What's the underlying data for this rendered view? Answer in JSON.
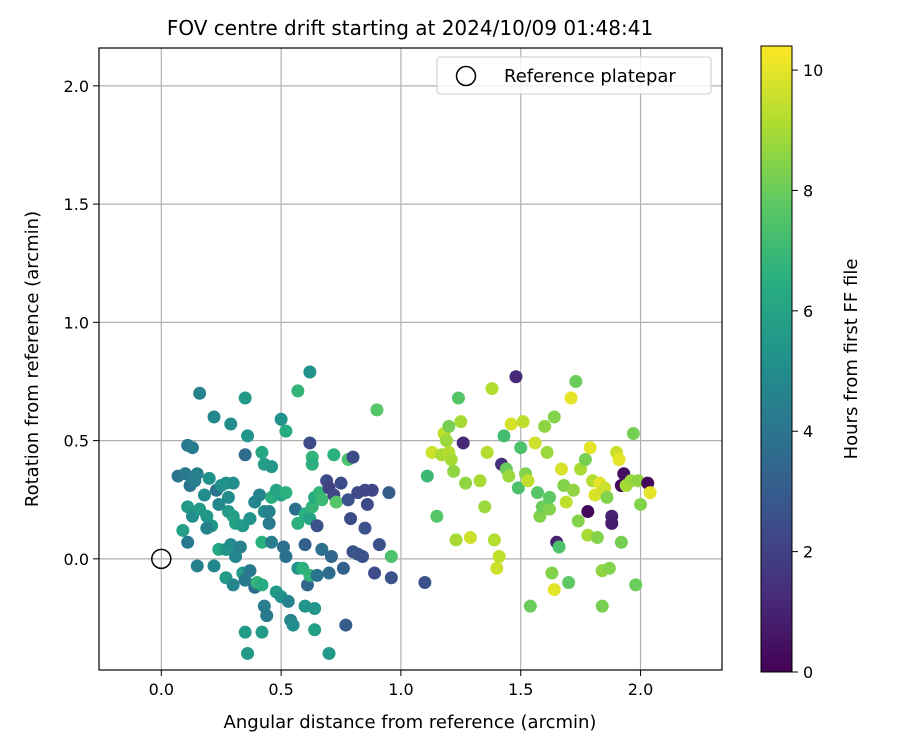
{
  "chart_data": {
    "type": "scatter",
    "title": "FOV centre drift starting at 2024/10/09 01:48:41",
    "xlabel": "Angular distance from reference (arcmin)",
    "ylabel": "Rotation from reference (arcmin)",
    "xlim": [
      -0.26,
      2.34
    ],
    "ylim": [
      -0.47,
      2.16
    ],
    "xticks": [
      0.0,
      0.5,
      1.0,
      1.5,
      2.0
    ],
    "xtick_labels": [
      "0.0",
      "0.5",
      "1.0",
      "1.5",
      "2.0"
    ],
    "yticks": [
      0.0,
      0.5,
      1.0,
      1.5,
      2.0
    ],
    "ytick_labels": [
      "0.0",
      "0.5",
      "1.0",
      "1.5",
      "2.0"
    ],
    "grid": true,
    "legend": {
      "position": "top-right",
      "label": "Reference platepar"
    },
    "reference_point": {
      "x": 0.0,
      "y": 0.0
    },
    "colorbar": {
      "label": "Hours from first FF file",
      "min": 0,
      "max": 10.4,
      "ticks": [
        0,
        2,
        4,
        6,
        8,
        10
      ],
      "tick_labels": [
        "0",
        "2",
        "4",
        "6",
        "8",
        "10"
      ],
      "colormap": "viridis"
    },
    "point_fields": [
      "x",
      "y",
      "hours"
    ],
    "points": [
      [
        0.11,
        0.48,
        4.2
      ],
      [
        0.13,
        0.47,
        4.3
      ],
      [
        0.16,
        0.7,
        4.6
      ],
      [
        0.22,
        0.6,
        4.8
      ],
      [
        0.29,
        0.57,
        5.0
      ],
      [
        0.35,
        0.68,
        5.6
      ],
      [
        0.36,
        0.52,
        5.4
      ],
      [
        0.35,
        0.44,
        3.6
      ],
      [
        0.42,
        0.45,
        6.2
      ],
      [
        0.43,
        0.4,
        5.8
      ],
      [
        0.46,
        0.39,
        5.5
      ],
      [
        0.5,
        0.59,
        5.2
      ],
      [
        0.52,
        0.54,
        6.4
      ],
      [
        0.57,
        0.71,
        6.8
      ],
      [
        0.62,
        0.79,
        5.2
      ],
      [
        0.62,
        0.49,
        2.4
      ],
      [
        0.63,
        0.43,
        6.8
      ],
      [
        0.63,
        0.4,
        6.6
      ],
      [
        0.72,
        0.44,
        6.6
      ],
      [
        0.78,
        0.42,
        7.4
      ],
      [
        0.8,
        0.43,
        2.4
      ],
      [
        0.9,
        0.63,
        7.6
      ],
      [
        0.07,
        0.35,
        4.0
      ],
      [
        0.1,
        0.36,
        4.2
      ],
      [
        0.12,
        0.31,
        4.0
      ],
      [
        0.14,
        0.33,
        4.4
      ],
      [
        0.15,
        0.36,
        4.5
      ],
      [
        0.18,
        0.27,
        5.0
      ],
      [
        0.2,
        0.34,
        5.2
      ],
      [
        0.23,
        0.29,
        4.0
      ],
      [
        0.25,
        0.31,
        5.1
      ],
      [
        0.27,
        0.32,
        5.3
      ],
      [
        0.28,
        0.26,
        5.0
      ],
      [
        0.3,
        0.32,
        5.0
      ],
      [
        0.11,
        0.22,
        5.6
      ],
      [
        0.13,
        0.18,
        5.0
      ],
      [
        0.16,
        0.21,
        5.6
      ],
      [
        0.19,
        0.18,
        5.5
      ],
      [
        0.21,
        0.14,
        5.4
      ],
      [
        0.24,
        0.23,
        4.8
      ],
      [
        0.28,
        0.2,
        5.6
      ],
      [
        0.3,
        0.18,
        5.8
      ],
      [
        0.31,
        0.15,
        5.9
      ],
      [
        0.34,
        0.14,
        5.6
      ],
      [
        0.37,
        0.17,
        5.3
      ],
      [
        0.39,
        0.24,
        4.8
      ],
      [
        0.41,
        0.27,
        4.6
      ],
      [
        0.43,
        0.2,
        4.9
      ],
      [
        0.45,
        0.2,
        4.6
      ],
      [
        0.45,
        0.15,
        4.2
      ],
      [
        0.46,
        0.26,
        6.5
      ],
      [
        0.48,
        0.29,
        6.2
      ],
      [
        0.5,
        0.27,
        6.0
      ],
      [
        0.52,
        0.28,
        6.6
      ],
      [
        0.56,
        0.21,
        3.8
      ],
      [
        0.57,
        0.15,
        6.6
      ],
      [
        0.6,
        0.19,
        6.5
      ],
      [
        0.62,
        0.17,
        6.0
      ],
      [
        0.63,
        0.22,
        6.8
      ],
      [
        0.64,
        0.26,
        6.4
      ],
      [
        0.66,
        0.28,
        6.8
      ],
      [
        0.67,
        0.25,
        7.0
      ],
      [
        0.69,
        0.33,
        2.4
      ],
      [
        0.7,
        0.3,
        2.0
      ],
      [
        0.72,
        0.27,
        2.2
      ],
      [
        0.73,
        0.24,
        7.6
      ],
      [
        0.75,
        0.32,
        2.4
      ],
      [
        0.78,
        0.25,
        2.6
      ],
      [
        0.79,
        0.17,
        2.4
      ],
      [
        0.82,
        0.28,
        2.4
      ],
      [
        0.85,
        0.29,
        2.2
      ],
      [
        0.86,
        0.23,
        2.4
      ],
      [
        0.88,
        0.29,
        2.2
      ],
      [
        0.95,
        0.28,
        3.0
      ],
      [
        0.85,
        0.13,
        2.6
      ],
      [
        0.65,
        0.14,
        2.6
      ],
      [
        0.09,
        0.12,
        5.8
      ],
      [
        0.11,
        0.07,
        4.2
      ],
      [
        0.15,
        -0.03,
        4.5
      ],
      [
        0.19,
        0.13,
        4.6
      ],
      [
        0.22,
        -0.03,
        4.8
      ],
      [
        0.24,
        0.04,
        6.2
      ],
      [
        0.27,
        0.04,
        5.4
      ],
      [
        0.27,
        -0.08,
        5.6
      ],
      [
        0.29,
        0.06,
        5.0
      ],
      [
        0.3,
        -0.11,
        4.8
      ],
      [
        0.31,
        0.01,
        4.8
      ],
      [
        0.33,
        0.05,
        4.6
      ],
      [
        0.34,
        -0.06,
        5.6
      ],
      [
        0.35,
        -0.09,
        4.2
      ],
      [
        0.37,
        -0.05,
        4.2
      ],
      [
        0.39,
        -0.12,
        3.8
      ],
      [
        0.4,
        -0.1,
        6.8
      ],
      [
        0.42,
        -0.11,
        6.4
      ],
      [
        0.42,
        0.07,
        6.6
      ],
      [
        0.43,
        -0.2,
        4.4
      ],
      [
        0.44,
        -0.24,
        4.2
      ],
      [
        0.46,
        0.07,
        4.4
      ],
      [
        0.48,
        -0.14,
        5.6
      ],
      [
        0.5,
        -0.16,
        5.2
      ],
      [
        0.51,
        0.05,
        3.8
      ],
      [
        0.52,
        0.01,
        3.8
      ],
      [
        0.53,
        -0.18,
        4.6
      ],
      [
        0.54,
        -0.26,
        4.6
      ],
      [
        0.55,
        -0.28,
        5.0
      ],
      [
        0.57,
        -0.04,
        5.2
      ],
      [
        0.59,
        -0.04,
        6.6
      ],
      [
        0.6,
        0.06,
        3.2
      ],
      [
        0.6,
        -0.2,
        5.4
      ],
      [
        0.61,
        -0.11,
        3.4
      ],
      [
        0.62,
        -0.07,
        6.8
      ],
      [
        0.64,
        -0.21,
        5.4
      ],
      [
        0.65,
        -0.07,
        4.0
      ],
      [
        0.67,
        0.04,
        3.8
      ],
      [
        0.7,
        -0.06,
        3.6
      ],
      [
        0.71,
        0.01,
        3.4
      ],
      [
        0.76,
        -0.04,
        3.2
      ],
      [
        0.77,
        -0.28,
        3.0
      ],
      [
        0.8,
        0.03,
        2.6
      ],
      [
        0.82,
        0.02,
        2.8
      ],
      [
        0.84,
        0.01,
        2.6
      ],
      [
        0.89,
        -0.06,
        2.4
      ],
      [
        0.91,
        0.06,
        2.6
      ],
      [
        0.96,
        0.01,
        7.4
      ],
      [
        0.96,
        -0.08,
        2.6
      ],
      [
        0.35,
        -0.31,
        5.6
      ],
      [
        0.36,
        -0.4,
        5.6
      ],
      [
        0.42,
        -0.31,
        5.6
      ],
      [
        0.64,
        -0.3,
        5.8
      ],
      [
        0.7,
        -0.4,
        5.6
      ],
      [
        1.1,
        -0.1,
        2.6
      ],
      [
        1.11,
        0.35,
        7.0
      ],
      [
        1.13,
        0.45,
        9.6
      ],
      [
        1.15,
        0.18,
        7.6
      ],
      [
        1.17,
        0.44,
        9.0
      ],
      [
        1.18,
        0.53,
        9.4
      ],
      [
        1.19,
        0.5,
        8.8
      ],
      [
        1.2,
        0.56,
        8.2
      ],
      [
        1.2,
        0.45,
        9.2
      ],
      [
        1.21,
        0.42,
        9.0
      ],
      [
        1.22,
        0.37,
        8.6
      ],
      [
        1.23,
        0.08,
        9.0
      ],
      [
        1.24,
        0.68,
        7.6
      ],
      [
        1.25,
        0.58,
        9.0
      ],
      [
        1.26,
        0.49,
        1.2
      ],
      [
        1.27,
        0.32,
        8.6
      ],
      [
        1.29,
        0.09,
        9.6
      ],
      [
        1.33,
        0.33,
        9.0
      ],
      [
        1.35,
        0.22,
        8.8
      ],
      [
        1.36,
        0.45,
        9.2
      ],
      [
        1.38,
        0.72,
        9.2
      ],
      [
        1.39,
        0.08,
        9.2
      ],
      [
        1.4,
        -0.04,
        9.6
      ],
      [
        1.41,
        0.01,
        9.4
      ],
      [
        1.42,
        0.4,
        1.4
      ],
      [
        1.43,
        0.52,
        7.2
      ],
      [
        1.44,
        0.38,
        8.0
      ],
      [
        1.45,
        0.35,
        8.8
      ],
      [
        1.46,
        0.57,
        9.8
      ],
      [
        1.48,
        0.77,
        1.2
      ],
      [
        1.49,
        0.3,
        7.4
      ],
      [
        1.5,
        0.47,
        7.4
      ],
      [
        1.51,
        0.58,
        9.4
      ],
      [
        1.52,
        0.36,
        8.4
      ],
      [
        1.53,
        0.33,
        9.4
      ],
      [
        1.54,
        -0.2,
        8.0
      ],
      [
        1.56,
        0.49,
        9.6
      ],
      [
        1.57,
        0.28,
        7.6
      ],
      [
        1.58,
        0.18,
        8.4
      ],
      [
        1.59,
        0.22,
        8.0
      ],
      [
        1.6,
        0.56,
        8.6
      ],
      [
        1.61,
        0.45,
        8.8
      ],
      [
        1.62,
        0.21,
        8.4
      ],
      [
        1.62,
        0.26,
        7.8
      ],
      [
        1.63,
        -0.06,
        8.4
      ],
      [
        1.64,
        -0.13,
        10.0
      ],
      [
        1.64,
        0.6,
        8.4
      ],
      [
        1.65,
        0.07,
        1.0
      ],
      [
        1.66,
        0.05,
        7.4
      ],
      [
        1.67,
        0.38,
        9.8
      ],
      [
        1.68,
        0.31,
        8.4
      ],
      [
        1.69,
        0.24,
        9.4
      ],
      [
        1.7,
        -0.1,
        7.8
      ],
      [
        1.71,
        0.68,
        10.0
      ],
      [
        1.72,
        0.29,
        8.6
      ],
      [
        1.73,
        0.75,
        8.0
      ],
      [
        1.74,
        0.16,
        8.4
      ],
      [
        1.75,
        0.38,
        9.0
      ],
      [
        1.77,
        0.42,
        8.2
      ],
      [
        1.78,
        0.1,
        9.0
      ],
      [
        1.79,
        0.47,
        10.0
      ],
      [
        1.8,
        0.33,
        9.2
      ],
      [
        1.81,
        0.27,
        9.8
      ],
      [
        1.82,
        0.09,
        8.4
      ],
      [
        1.83,
        0.32,
        10.0
      ],
      [
        1.84,
        -0.05,
        8.6
      ],
      [
        1.84,
        -0.2,
        8.2
      ],
      [
        1.85,
        0.3,
        9.6
      ],
      [
        1.86,
        0.26,
        8.4
      ],
      [
        1.87,
        -0.04,
        8.4
      ],
      [
        1.88,
        0.18,
        1.0
      ],
      [
        1.88,
        0.15,
        0.8
      ],
      [
        1.9,
        0.45,
        9.6
      ],
      [
        1.91,
        0.42,
        10.0
      ],
      [
        1.92,
        0.31,
        0.2
      ],
      [
        1.93,
        0.36,
        0.4
      ],
      [
        1.94,
        0.31,
        9.0
      ],
      [
        1.96,
        0.33,
        8.8
      ],
      [
        1.97,
        0.53,
        8.2
      ],
      [
        1.98,
        -0.11,
        8.0
      ],
      [
        1.99,
        0.33,
        8.6
      ],
      [
        2.0,
        0.23,
        8.4
      ],
      [
        2.03,
        0.32,
        0.2
      ],
      [
        2.04,
        0.28,
        10.0
      ],
      [
        1.92,
        0.07,
        8.2
      ],
      [
        1.78,
        0.2,
        0.2
      ]
    ]
  }
}
